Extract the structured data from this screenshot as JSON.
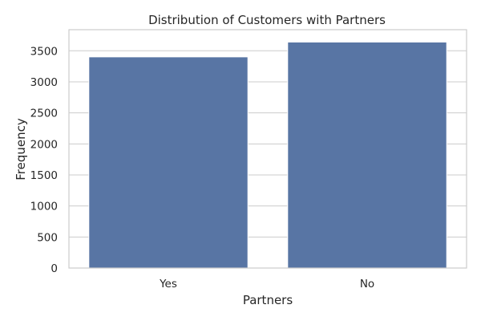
{
  "chart_data": {
    "type": "bar",
    "title": "Distribution of Customers with Partners",
    "xlabel": "Partners",
    "ylabel": "Frequency",
    "categories": [
      "Yes",
      "No"
    ],
    "values": [
      3402,
      3641
    ],
    "ylim": [
      0,
      3840
    ],
    "yticks": [
      0,
      500,
      1000,
      1500,
      2000,
      2500,
      3000,
      3500
    ],
    "grid": true,
    "bar_color": "#5875a4"
  }
}
